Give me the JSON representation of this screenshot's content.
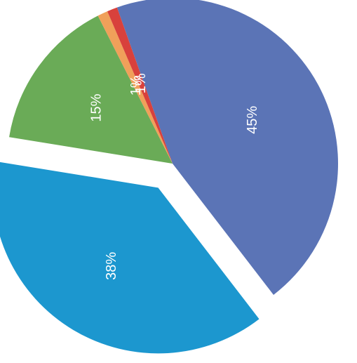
{
  "chart_data": {
    "type": "pie",
    "title": "",
    "slices": [
      {
        "label": "45%",
        "value": 45,
        "color": "#5b74b6",
        "exploded": false
      },
      {
        "label": "38%",
        "value": 38,
        "color": "#1c97cf",
        "exploded": true
      },
      {
        "label": "15%",
        "value": 15,
        "color": "#6aab57",
        "exploded": false
      },
      {
        "label": "1%",
        "value": 1,
        "color": "#f0a05a",
        "exploded": false
      },
      {
        "label": "1%",
        "value": 1,
        "color": "#d8413c",
        "exploded": false
      }
    ],
    "labels_rotated": true,
    "legend": "none"
  }
}
